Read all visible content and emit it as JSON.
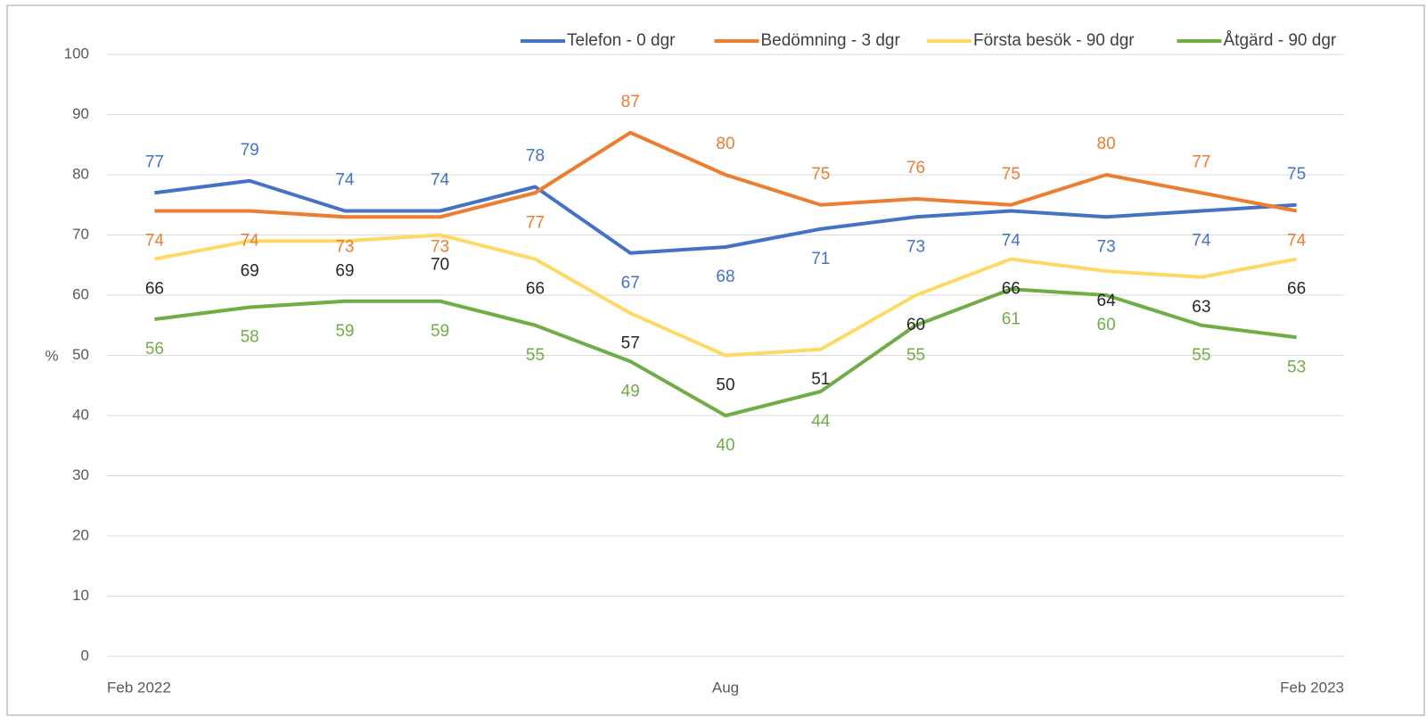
{
  "chart_data": {
    "type": "line",
    "categories": [
      "Feb 2022",
      null,
      null,
      null,
      null,
      null,
      "Aug",
      null,
      null,
      null,
      null,
      null,
      "Feb 2023"
    ],
    "ylabel": "%",
    "ylim": [
      0,
      100
    ],
    "yticks": [
      0,
      10,
      20,
      30,
      40,
      50,
      60,
      70,
      80,
      90,
      100
    ],
    "grid": true,
    "legend": "top-right",
    "series": [
      {
        "name": "Telefon - 0 dgr",
        "color": "#4472c4",
        "label_color": "#4472c4",
        "values": [
          77,
          79,
          74,
          74,
          78,
          67,
          68,
          71,
          73,
          74,
          73,
          74,
          75
        ]
      },
      {
        "name": "Bedömning - 3 dgr",
        "color": "#ed7d31",
        "label_color": "#ed7d31",
        "values": [
          74,
          74,
          73,
          73,
          77,
          87,
          80,
          75,
          76,
          75,
          80,
          77,
          74
        ]
      },
      {
        "name": "Första besök - 90 dgr",
        "color": "#ffd966",
        "label_color": "#262626",
        "values": [
          66,
          69,
          69,
          70,
          66,
          57,
          50,
          51,
          60,
          66,
          64,
          63,
          66
        ]
      },
      {
        "name": "Åtgärd - 90 dgr",
        "color": "#70ad47",
        "label_color": "#70ad47",
        "values": [
          56,
          58,
          59,
          59,
          55,
          49,
          40,
          44,
          55,
          61,
          60,
          55,
          53
        ]
      }
    ]
  }
}
